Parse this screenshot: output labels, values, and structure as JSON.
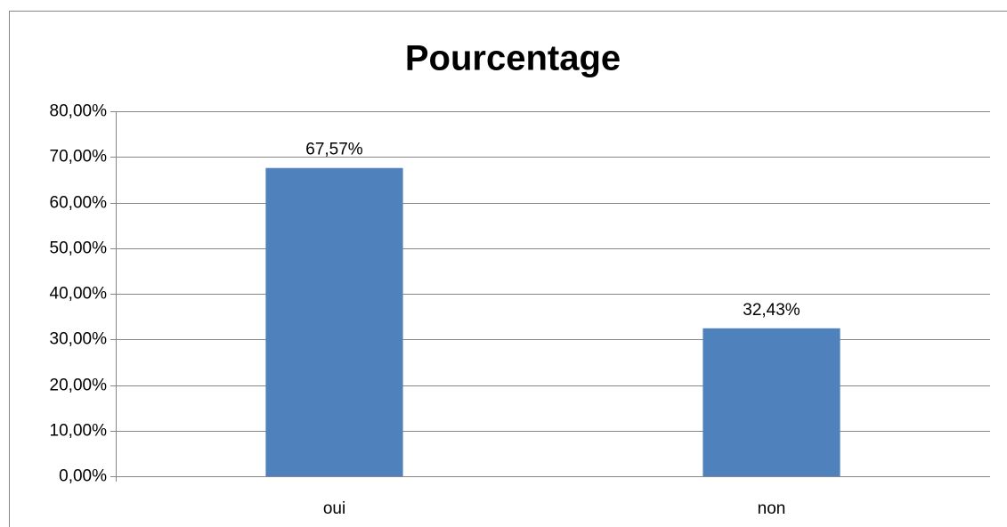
{
  "chart_data": {
    "type": "bar",
    "title": "Pourcentage",
    "categories": [
      "oui",
      "non"
    ],
    "values": [
      67.57,
      32.43
    ],
    "value_labels": [
      "67,57%",
      "32,43%"
    ],
    "color": "#4f81bd",
    "ylim": [
      0,
      80
    ],
    "yticks": [
      {
        "value": 0,
        "label": "0,00%"
      },
      {
        "value": 10,
        "label": "10,00%"
      },
      {
        "value": 20,
        "label": "20,00%"
      },
      {
        "value": 30,
        "label": "30,00%"
      },
      {
        "value": 40,
        "label": "40,00%"
      },
      {
        "value": 50,
        "label": "50,00%"
      },
      {
        "value": 60,
        "label": "60,00%"
      },
      {
        "value": 70,
        "label": "70,00%"
      },
      {
        "value": 80,
        "label": "80,00%"
      }
    ],
    "grid": true
  }
}
